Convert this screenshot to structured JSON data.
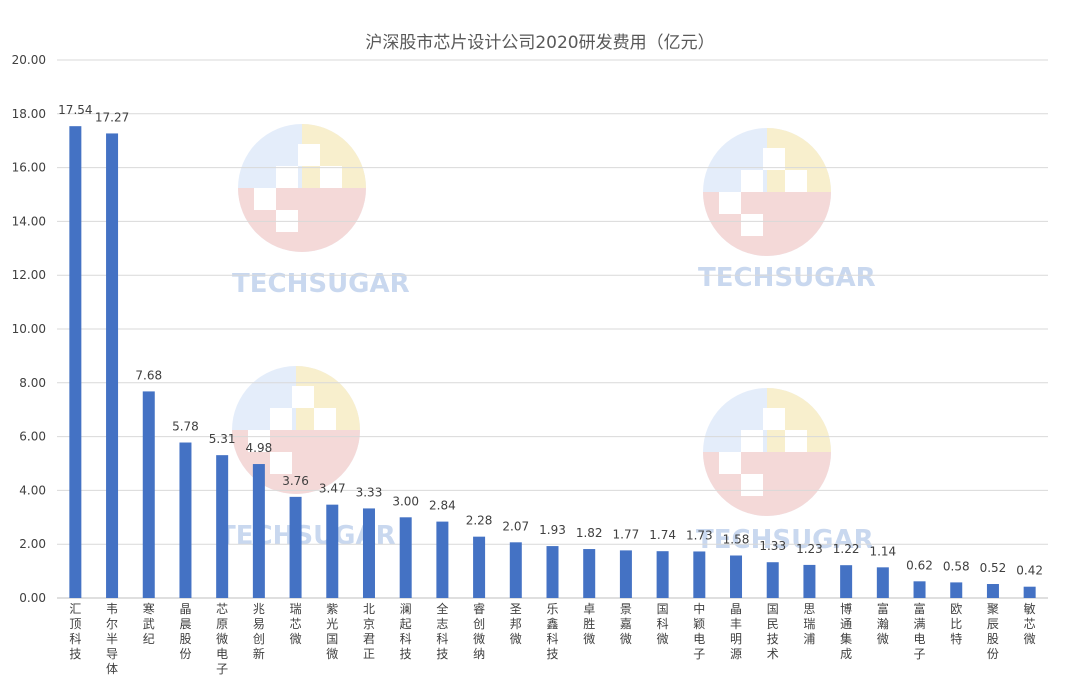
{
  "chart_data": {
    "type": "bar",
    "title": "沪深股市芯片设计公司2020研发费用（亿元）",
    "xlabel": "",
    "ylabel": "",
    "ylim": [
      0,
      20
    ],
    "yticks": [
      "0.00",
      "2.00",
      "4.00",
      "6.00",
      "8.00",
      "10.00",
      "12.00",
      "14.00",
      "16.00",
      "18.00",
      "20.00"
    ],
    "grid": true,
    "legend": "none",
    "bar_color": "#4472c4",
    "categories": [
      "汇顶科技",
      "韦尔半导体",
      "寒武纪",
      "晶晨股份",
      "芯原微电子",
      "兆易创新",
      "瑞芯微",
      "紫光国微",
      "北京君正",
      "澜起科技",
      "全志科技",
      "睿创微纳",
      "圣邦微",
      "乐鑫科技",
      "卓胜微",
      "景嘉微",
      "国科微",
      "中颖电子",
      "晶丰明源",
      "国民技术",
      "思瑞浦",
      "博通集成",
      "富瀚微",
      "富满电子",
      "欧比特",
      "聚辰股份",
      "敏芯微"
    ],
    "values": [
      17.54,
      17.27,
      7.68,
      5.78,
      5.31,
      4.98,
      3.76,
      3.47,
      3.33,
      3.0,
      2.84,
      2.28,
      2.07,
      1.93,
      1.82,
      1.77,
      1.74,
      1.73,
      1.58,
      1.33,
      1.23,
      1.22,
      1.14,
      0.62,
      0.58,
      0.52,
      0.42
    ],
    "value_labels": [
      "17.54",
      "17.27",
      "7.68",
      "5.78",
      "5.31",
      "4.98",
      "3.76",
      "3.47",
      "3.33",
      "3.00",
      "2.84",
      "2.28",
      "2.07",
      "1.93",
      "1.82",
      "1.77",
      "1.74",
      "1.73",
      "1.58",
      "1.33",
      "1.23",
      "1.22",
      "1.14",
      "0.62",
      "0.58",
      "0.52",
      "0.42"
    ]
  },
  "watermark": {
    "text": "TECHSUGAR"
  }
}
